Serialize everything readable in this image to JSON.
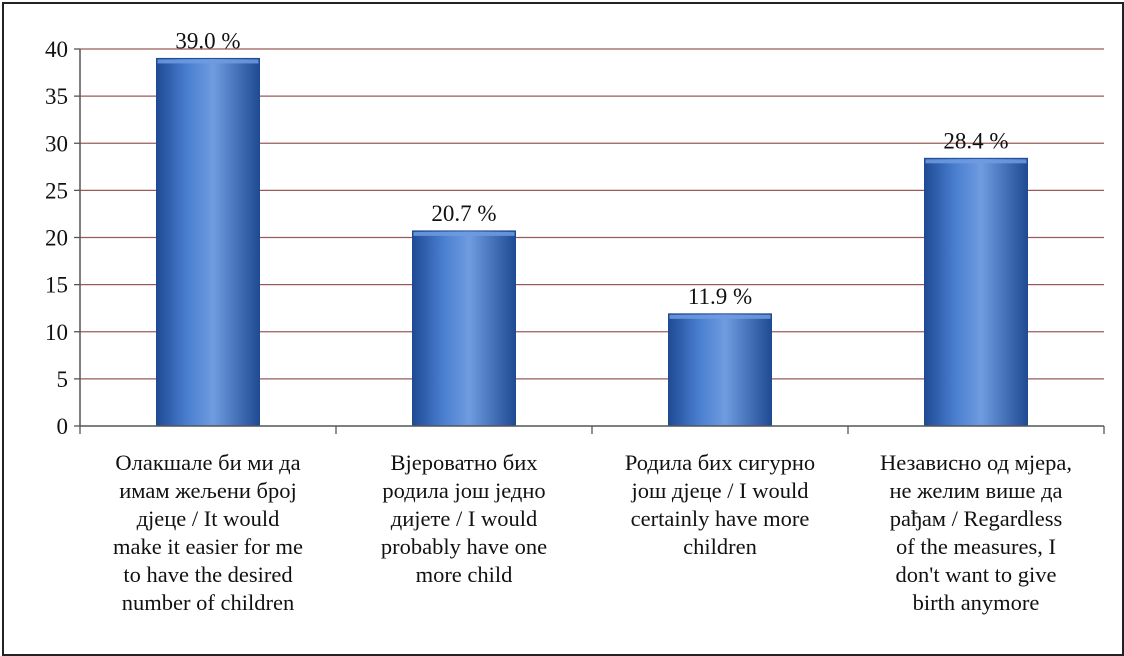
{
  "chart_data": {
    "type": "bar",
    "categories": [
      "Олакшале би ми да имам жељени број дјеце / It would make it easier for me to have the desired number of children",
      "Вјероватно бих родила још једно дијете / I would probably have one more child",
      "Родила бих сигурно још дјеце / I would certainly have more children",
      "Независно од мјера, не желим више да рађам / Regardless of the measures, I don't want to give birth anymore"
    ],
    "category_lines": [
      [
        "Олакшале би ми да",
        "имам жељени број",
        "дјеце / It would",
        "make it easier for me",
        "to have the desired",
        "number of children"
      ],
      [
        "Вјероватно бих",
        "родила још једно",
        "дијете / I would",
        "probably have one",
        "more child"
      ],
      [
        "Родила бих сигурно",
        "још дјеце / I would",
        "certainly have more",
        "children"
      ],
      [
        "Независно од мјера,",
        "не желим више да",
        "рађам / Regardless",
        "of the measures, I",
        "don't want to give",
        "birth anymore"
      ]
    ],
    "values": [
      39.0,
      20.7,
      11.9,
      28.4
    ],
    "data_labels": [
      "39.0 %",
      "20.7 %",
      "11.9 %",
      "28.4 %"
    ],
    "yticks": [
      "0",
      "5",
      "10",
      "15",
      "20",
      "25",
      "30",
      "35",
      "40"
    ],
    "ylim": [
      0,
      40
    ],
    "grid": true,
    "legend": "none",
    "colors": {
      "bar": "#3a6fc4",
      "bar_dark": "#1f4b94",
      "bar_light": "#6f9be0",
      "grid": "#9a5b57",
      "axis": "#555555",
      "text": "#111111"
    }
  }
}
